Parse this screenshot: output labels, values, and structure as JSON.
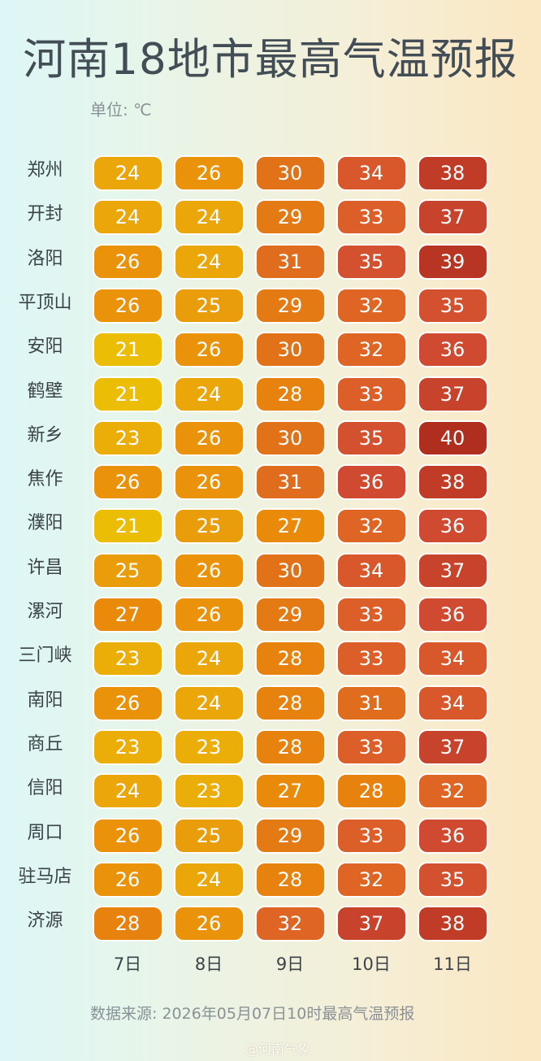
{
  "title": "河南18地市最高气温预报",
  "unit": "单位: ℃",
  "source": "数据来源: 2026年05月07日10时最高气温预报",
  "watermark": "@河南气象",
  "chart_data": {
    "type": "heatmap",
    "title": "河南18地市最高气温预报",
    "unit": "℃",
    "columns": [
      "7日",
      "8日",
      "9日",
      "10日",
      "11日"
    ],
    "rows": [
      "郑州",
      "开封",
      "洛阳",
      "平顶山",
      "安阳",
      "鹤壁",
      "新乡",
      "焦作",
      "濮阳",
      "许昌",
      "漯河",
      "三门峡",
      "南阳",
      "商丘",
      "信阳",
      "周口",
      "驻马店",
      "济源"
    ],
    "values": [
      [
        24,
        26,
        30,
        34,
        38
      ],
      [
        24,
        24,
        29,
        33,
        37
      ],
      [
        26,
        24,
        31,
        35,
        39
      ],
      [
        26,
        25,
        29,
        32,
        35
      ],
      [
        21,
        26,
        30,
        32,
        36
      ],
      [
        21,
        24,
        28,
        33,
        37
      ],
      [
        23,
        26,
        30,
        35,
        40
      ],
      [
        26,
        26,
        31,
        36,
        38
      ],
      [
        21,
        25,
        27,
        32,
        36
      ],
      [
        25,
        26,
        30,
        34,
        37
      ],
      [
        27,
        26,
        29,
        33,
        36
      ],
      [
        23,
        24,
        28,
        33,
        34
      ],
      [
        26,
        24,
        28,
        31,
        34
      ],
      [
        23,
        23,
        28,
        33,
        37
      ],
      [
        24,
        23,
        27,
        28,
        32
      ],
      [
        26,
        25,
        29,
        33,
        36
      ],
      [
        26,
        24,
        28,
        32,
        35
      ],
      [
        28,
        26,
        32,
        37,
        38
      ]
    ],
    "color_scale": [
      {
        "value": 21,
        "color": "#ebbd05"
      },
      {
        "value": 24,
        "color": "#eba60a"
      },
      {
        "value": 27,
        "color": "#e98a0a"
      },
      {
        "value": 30,
        "color": "#e27217"
      },
      {
        "value": 33,
        "color": "#dc5f2a"
      },
      {
        "value": 36,
        "color": "#cf4a30"
      },
      {
        "value": 40,
        "color": "#b02e1e"
      }
    ]
  }
}
